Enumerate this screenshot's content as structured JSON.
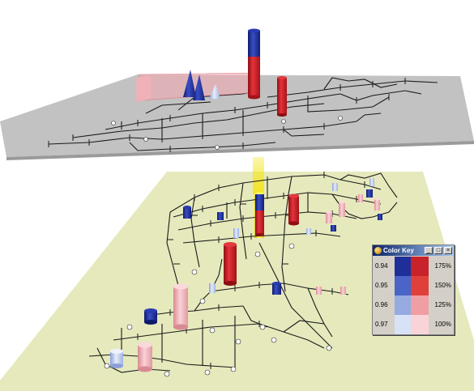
{
  "color_key": {
    "title": "Color Key",
    "buttons": [
      "_",
      "□",
      "×"
    ],
    "rows": [
      {
        "left": "0.94",
        "right": "175%",
        "blue": "#1f2f9a",
        "red": "#c8222a"
      },
      {
        "left": "0.95",
        "right": "150%",
        "blue": "#4a64c8",
        "red": "#e0403a"
      },
      {
        "left": "0.96",
        "right": "125%",
        "blue": "#95abe2",
        "red": "#ef9ea4"
      },
      {
        "left": "0.97",
        "right": "100%",
        "blue": "#d8e2f6",
        "red": "#f8d4d8"
      }
    ]
  },
  "colors": {
    "upper_plane": "#bfbfbf",
    "lower_plane": "#e8ebbd",
    "yellow": "#f2e431"
  }
}
